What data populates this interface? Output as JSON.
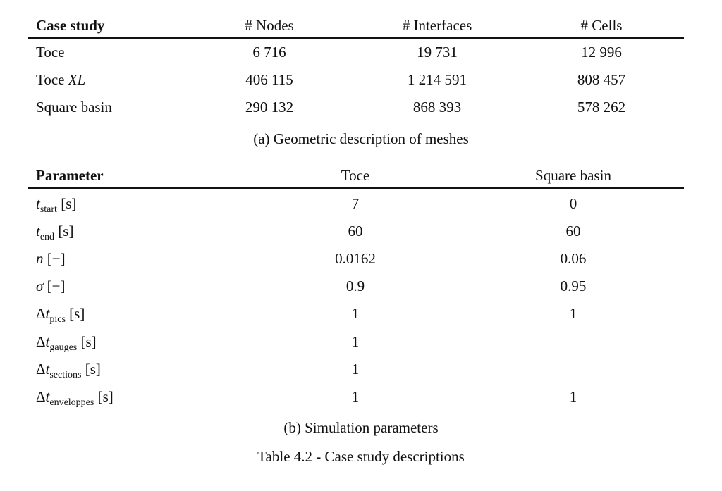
{
  "table_a": {
    "headers": [
      "Case study",
      "# Nodes",
      "# Interfaces",
      "# Cells"
    ],
    "rows": [
      {
        "name": "Toce",
        "name_suffix": "",
        "nodes": "6 716",
        "interfaces": "19 731",
        "cells": "12 996"
      },
      {
        "name": "Toce",
        "name_suffix": "XL",
        "nodes": "406 115",
        "interfaces": "1 214 591",
        "cells": "808 457"
      },
      {
        "name": "Square basin",
        "name_suffix": "",
        "nodes": "290 132",
        "interfaces": "868 393",
        "cells": "578 262"
      }
    ],
    "caption": "(a) Geometric description of meshes"
  },
  "table_b": {
    "headers": [
      "Parameter",
      "Toce",
      "Square basin"
    ],
    "rows": [
      {
        "prefix": "",
        "var": "t",
        "sub": "start",
        "unit": "[s]",
        "toce": "7",
        "square": "0"
      },
      {
        "prefix": "",
        "var": "t",
        "sub": "end",
        "unit": "[s]",
        "toce": "60",
        "square": "60"
      },
      {
        "prefix": "",
        "var": "n",
        "sub": "",
        "unit": "[−]",
        "toce": "0.0162",
        "square": "0.06"
      },
      {
        "prefix": "",
        "var": "σ",
        "sub": "",
        "unit": "[−]",
        "toce": "0.9",
        "square": "0.95"
      },
      {
        "prefix": "Δ",
        "var": "t",
        "sub": "pics",
        "unit": "[s]",
        "toce": "1",
        "square": "1"
      },
      {
        "prefix": "Δ",
        "var": "t",
        "sub": "gauges",
        "unit": "[s]",
        "toce": "1",
        "square": ""
      },
      {
        "prefix": "Δ",
        "var": "t",
        "sub": "sections",
        "unit": "[s]",
        "toce": "1",
        "square": ""
      },
      {
        "prefix": "Δ",
        "var": "t",
        "sub": "enveloppes",
        "unit": "[s]",
        "toce": "1",
        "square": "1"
      }
    ],
    "caption": "(b) Simulation parameters"
  },
  "table_caption": "Table 4.2 - Case study descriptions"
}
